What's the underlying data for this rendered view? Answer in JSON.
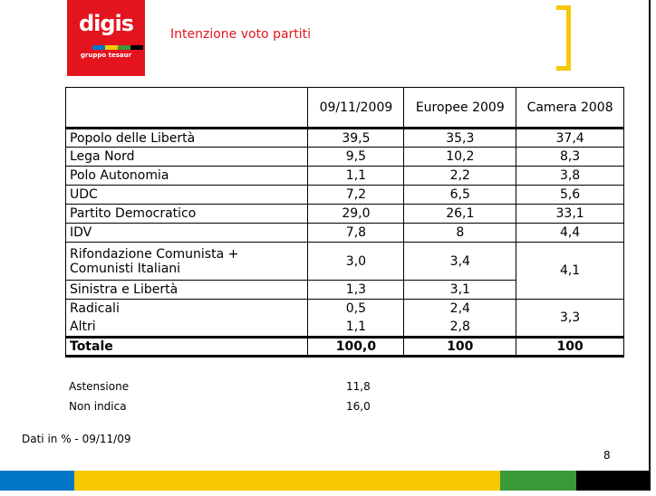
{
  "header": {
    "logo_text": "digis",
    "logo_subtitle": "gruppo tesaur",
    "title": "Intenzione voto partiti"
  },
  "colors": {
    "brand_red": "#e3141e",
    "accent_yellow": "#f7c700",
    "bar_blue": "#0077c8",
    "bar_green": "#3a9a3a",
    "bar_black": "#000000"
  },
  "table": {
    "columns": [
      "",
      "09/11/2009",
      "Europee 2009",
      "Camera 2008"
    ],
    "rows": [
      {
        "label": "Popolo delle Libertà",
        "v1": "39,5",
        "v2": "35,3",
        "v3": "37,4"
      },
      {
        "label": "Lega Nord",
        "v1": "9,5",
        "v2": "10,2",
        "v3": "8,3"
      },
      {
        "label": "Polo Autonomia",
        "v1": "1,1",
        "v2": "2,2",
        "v3": "3,8"
      },
      {
        "label": "UDC",
        "v1": "7,2",
        "v2": "6,5",
        "v3": "5,6"
      },
      {
        "label": "Partito Democratico",
        "v1": "29,0",
        "v2": "26,1",
        "v3": "33,1"
      },
      {
        "label": "IDV",
        "v1": "7,8",
        "v2": "8",
        "v3": "4,4"
      },
      {
        "label": "Rifondazione Comunista + Comunisti Italiani",
        "v1": "3,0",
        "v2": "3,4"
      },
      {
        "label": "Sinistra e Libertà",
        "v1": "1,3",
        "v2": "3,1"
      },
      {
        "label": "Radicali",
        "v1": "0,5",
        "v2": "2,4"
      },
      {
        "label": "Altri",
        "v1": "1,1",
        "v2": "2,8"
      }
    ],
    "merged": {
      "sinistra_camera": "4,1",
      "radicali_altri_camera": "3,3"
    },
    "total": {
      "label": "Totale",
      "v1": "100,0",
      "v2": "100",
      "v3": "100"
    }
  },
  "extras": [
    {
      "label": "Astensione",
      "value": "11,8"
    },
    {
      "label": "Non indica",
      "value": "16,0"
    }
  ],
  "footnote": "Dati in % - 09/11/09",
  "page_number": "8"
}
